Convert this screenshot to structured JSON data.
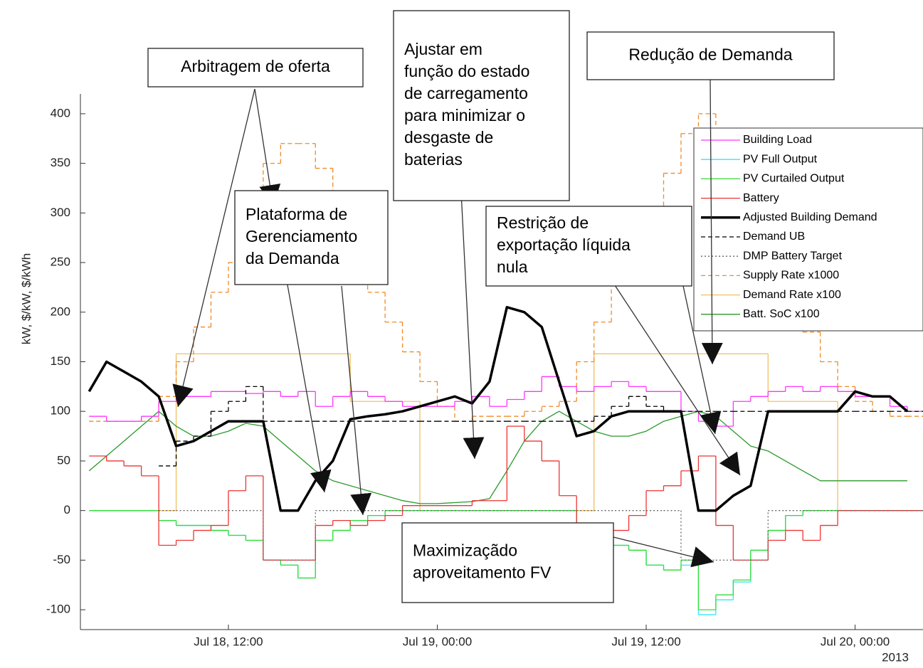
{
  "chart_data": {
    "type": "line",
    "ylabel": "kW, $/kW, $/kWh",
    "x_secondary_label": "2013",
    "x": [
      "2013-07-18 04:00",
      "2013-07-18 05:00",
      "2013-07-18 06:00",
      "2013-07-18 07:00",
      "2013-07-18 08:00",
      "2013-07-18 09:00",
      "2013-07-18 10:00",
      "2013-07-18 11:00",
      "2013-07-18 12:00",
      "2013-07-18 13:00",
      "2013-07-18 14:00",
      "2013-07-18 15:00",
      "2013-07-18 16:00",
      "2013-07-18 17:00",
      "2013-07-18 18:00",
      "2013-07-18 19:00",
      "2013-07-18 20:00",
      "2013-07-18 21:00",
      "2013-07-18 22:00",
      "2013-07-18 23:00",
      "2013-07-19 00:00",
      "2013-07-19 01:00",
      "2013-07-19 02:00",
      "2013-07-19 03:00",
      "2013-07-19 04:00",
      "2013-07-19 05:00",
      "2013-07-19 06:00",
      "2013-07-19 07:00",
      "2013-07-19 08:00",
      "2013-07-19 09:00",
      "2013-07-19 10:00",
      "2013-07-19 11:00",
      "2013-07-19 12:00",
      "2013-07-19 13:00",
      "2013-07-19 14:00",
      "2013-07-19 15:00",
      "2013-07-19 16:00",
      "2013-07-19 17:00",
      "2013-07-19 18:00",
      "2013-07-19 19:00",
      "2013-07-19 20:00",
      "2013-07-19 21:00",
      "2013-07-19 22:00",
      "2013-07-19 23:00",
      "2013-07-20 00:00",
      "2013-07-20 01:00",
      "2013-07-20 02:00",
      "2013-07-20 03:00"
    ],
    "xlim": [
      "2013-07-18 03:30",
      "2013-07-20 03:54"
    ],
    "xticks": [
      {
        "value": "2013-07-18 12:00",
        "label": "Jul 18, 12:00"
      },
      {
        "value": "2013-07-19 00:00",
        "label": "Jul 19, 00:00"
      },
      {
        "value": "2013-07-19 12:00",
        "label": "Jul 19, 12:00"
      },
      {
        "value": "2013-07-20 00:00",
        "label": "Jul 20, 00:00"
      }
    ],
    "ylim": [
      -120,
      420
    ],
    "yticks": [
      -100,
      -50,
      0,
      50,
      100,
      150,
      200,
      250,
      300,
      350,
      400
    ],
    "legend": "upper right",
    "series": [
      {
        "name": "Building Load",
        "color": "#ff33ff",
        "dash": "solid",
        "step": true,
        "values": [
          95,
          90,
          90,
          95,
          110,
          115,
          115,
          120,
          120,
          118,
          120,
          115,
          120,
          105,
          115,
          120,
          115,
          110,
          105,
          105,
          105,
          110,
          115,
          105,
          112,
          120,
          135,
          125,
          120,
          125,
          130,
          125,
          120,
          120,
          100,
          90,
          85,
          110,
          115,
          120,
          125,
          120,
          125,
          120,
          115,
          115,
          105,
          100
        ]
      },
      {
        "name": "PV Full Output",
        "color": "#33e5ff",
        "dash": "solid",
        "step": true,
        "values": [
          0,
          0,
          0,
          0,
          -10,
          -15,
          -15,
          -20,
          -25,
          -30,
          -50,
          -55,
          -68,
          -30,
          -20,
          -10,
          -5,
          0,
          0,
          0,
          0,
          0,
          0,
          0,
          0,
          0,
          0,
          0,
          -15,
          -25,
          -35,
          -40,
          -55,
          -60,
          -55,
          -105,
          -90,
          -72,
          -40,
          -20,
          -5,
          0,
          0,
          0,
          0,
          0,
          0,
          0
        ]
      },
      {
        "name": "PV Curtailed Output",
        "color": "#33dd33",
        "dash": "solid",
        "step": true,
        "values": [
          0,
          0,
          0,
          0,
          -10,
          -15,
          -15,
          -20,
          -25,
          -30,
          -50,
          -55,
          -68,
          -30,
          -20,
          -10,
          -5,
          0,
          0,
          0,
          0,
          0,
          0,
          0,
          0,
          0,
          0,
          0,
          -15,
          -25,
          -35,
          -40,
          -55,
          -60,
          -50,
          -100,
          -85,
          -70,
          -40,
          -20,
          -5,
          0,
          0,
          0,
          0,
          0,
          0,
          0
        ]
      },
      {
        "name": "Battery",
        "color": "#ee3333",
        "dash": "solid",
        "step": true,
        "values": [
          55,
          50,
          45,
          35,
          -35,
          -30,
          -20,
          -15,
          20,
          35,
          -50,
          -50,
          -50,
          -15,
          -10,
          -15,
          -10,
          -5,
          5,
          5,
          5,
          5,
          10,
          10,
          85,
          70,
          50,
          15,
          -40,
          -30,
          -20,
          -5,
          20,
          25,
          40,
          55,
          -15,
          -50,
          -50,
          -30,
          -20,
          -30,
          -15,
          0,
          0,
          0,
          0,
          0
        ]
      },
      {
        "name": "Adjusted Building Demand",
        "color": "#000000",
        "dash": "solid",
        "step": false,
        "values": [
          120,
          150,
          140,
          130,
          115,
          65,
          70,
          80,
          90,
          90,
          90,
          0,
          0,
          30,
          50,
          92,
          95,
          97,
          100,
          105,
          110,
          115,
          108,
          130,
          205,
          200,
          185,
          130,
          75,
          80,
          95,
          100,
          100,
          100,
          100,
          0,
          0,
          15,
          25,
          100,
          100,
          100,
          100,
          100,
          120,
          115,
          115,
          100
        ]
      },
      {
        "name": "Demand UB",
        "color": "#000000",
        "dash": "dashed",
        "step": true,
        "values": [
          null,
          null,
          null,
          null,
          45,
          70,
          75,
          100,
          110,
          125,
          90,
          90,
          90,
          90,
          90,
          90,
          90,
          90,
          90,
          90,
          90,
          90,
          90,
          90,
          90,
          90,
          90,
          90,
          90,
          95,
          105,
          115,
          105,
          100,
          100,
          100,
          100,
          100,
          100,
          100,
          100,
          100,
          100,
          100,
          100,
          100,
          100,
          100
        ]
      },
      {
        "name": "DMP Battery Target",
        "color": "#666666",
        "dash": "dotted",
        "step": true,
        "values": [
          null,
          null,
          null,
          null,
          0,
          0,
          0,
          0,
          0,
          0,
          -50,
          -50,
          -50,
          0,
          0,
          0,
          0,
          0,
          0,
          0,
          0,
          0,
          0,
          0,
          0,
          0,
          0,
          0,
          0,
          0,
          0,
          0,
          0,
          0,
          -50,
          -50,
          -50,
          -50,
          -50,
          0,
          0,
          0,
          0,
          0,
          0,
          0,
          0,
          0
        ]
      },
      {
        "name": "Supply Rate x1000",
        "color": "#f08a24",
        "dash": "dashed",
        "step": true,
        "values": [
          90,
          90,
          90,
          90,
          115,
          150,
          185,
          220,
          250,
          310,
          350,
          370,
          370,
          345,
          320,
          270,
          220,
          190,
          160,
          130,
          105,
          90,
          95,
          95,
          95,
          100,
          105,
          110,
          150,
          190,
          230,
          255,
          300,
          340,
          380,
          400,
          360,
          330,
          290,
          250,
          220,
          180,
          150,
          125,
          110,
          100,
          95,
          95
        ]
      },
      {
        "name": "Demand Rate x100",
        "color": "#f0c060",
        "dash": "solid",
        "step": true,
        "values": [
          0,
          0,
          0,
          0,
          0,
          158,
          158,
          158,
          158,
          158,
          158,
          158,
          158,
          158,
          158,
          110,
          110,
          110,
          110,
          0,
          0,
          0,
          0,
          0,
          0,
          0,
          0,
          0,
          0,
          158,
          158,
          158,
          158,
          158,
          158,
          158,
          158,
          158,
          158,
          110,
          110,
          110,
          110,
          0,
          0,
          0,
          0,
          0
        ]
      },
      {
        "name": "Batt. SoC x100",
        "color": "#2a9a2a",
        "dash": "solid",
        "step": false,
        "values": [
          40,
          55,
          70,
          85,
          100,
          85,
          75,
          75,
          80,
          88,
          85,
          70,
          55,
          40,
          30,
          25,
          20,
          15,
          10,
          7,
          7,
          8,
          9,
          12,
          40,
          70,
          90,
          100,
          90,
          80,
          75,
          75,
          80,
          90,
          95,
          100,
          95,
          80,
          65,
          60,
          50,
          40,
          30,
          30,
          30,
          30,
          30,
          30
        ]
      }
    ],
    "annotations": [
      {
        "lines": [
          "Arbitragem de oferta"
        ]
      },
      {
        "lines": [
          "Plataforma de",
          "Gerenciamento",
          "da Demanda"
        ]
      },
      {
        "lines": [
          "Ajustar em",
          "função do estado",
          "de carregamento",
          "para minimizar o",
          "desgaste de",
          "baterias"
        ]
      },
      {
        "lines": [
          "Redução de Demanda"
        ]
      },
      {
        "lines": [
          "Restrição de",
          "exportação líquida",
          "nula"
        ]
      },
      {
        "lines": [
          "Maximizaçãdo",
          "aproveitamento FV"
        ]
      }
    ]
  }
}
